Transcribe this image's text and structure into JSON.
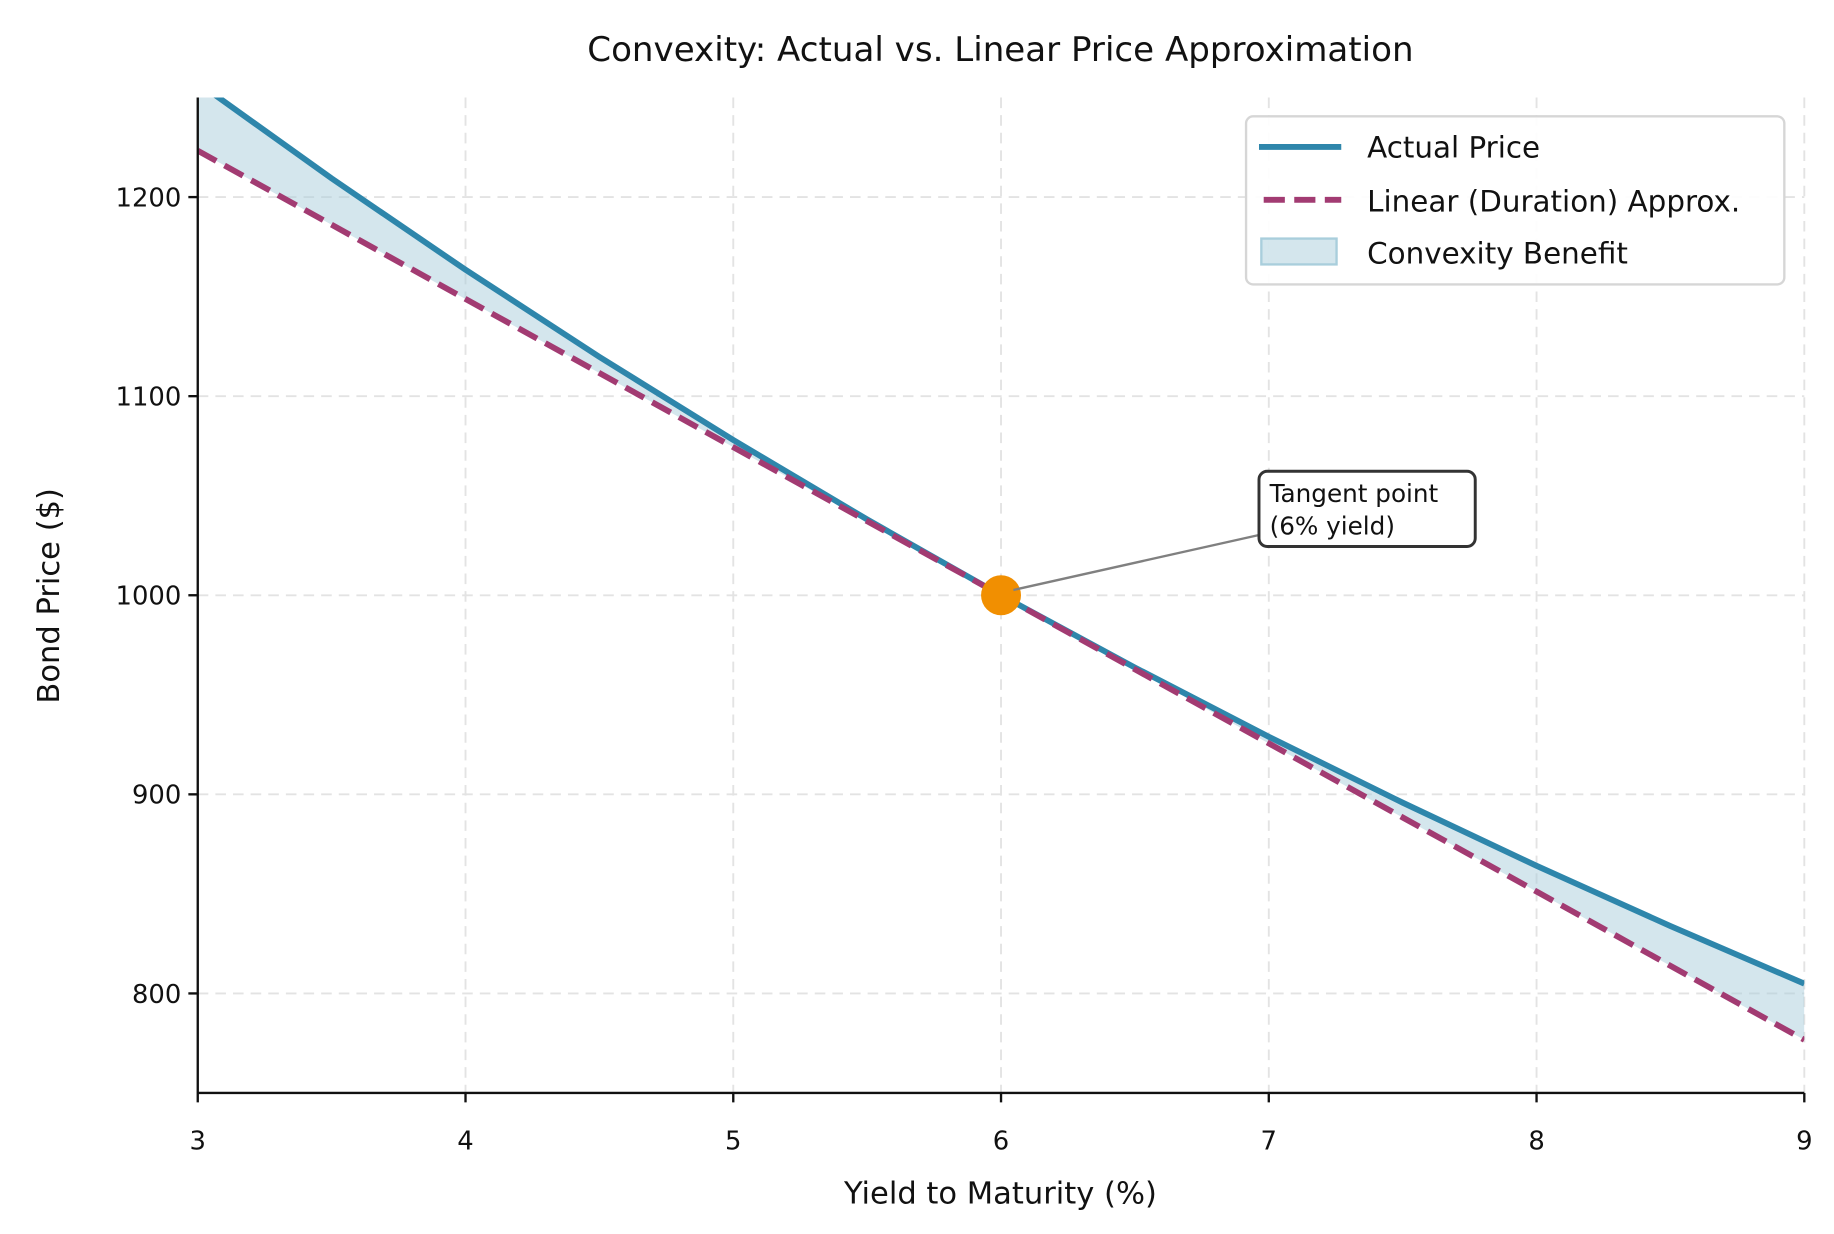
{
  "chart_data": {
    "type": "line",
    "title": "Convexity: Actual vs. Linear Price Approximation",
    "xlabel": "Yield to Maturity (%)",
    "ylabel": "Bond Price ($)",
    "xlim": [
      3,
      9
    ],
    "ylim": [
      750,
      1250
    ],
    "xticks": [
      "3",
      "4",
      "5",
      "6",
      "7",
      "8",
      "9"
    ],
    "yticks": [
      "800",
      "900",
      "1000",
      "1100",
      "1200"
    ],
    "grid": true,
    "legend_position": "top-right",
    "x": [
      3,
      3.5,
      4,
      4.5,
      5,
      5.5,
      6,
      6.5,
      7,
      7.5,
      8,
      8.5,
      9
    ],
    "series": [
      {
        "name": "Actual Price",
        "color": "#2E86AB",
        "style": "solid",
        "values": [
          1257.5,
          1209.4,
          1163.5,
          1119.7,
          1078.0,
          1038.1,
          1000,
          963.7,
          928.9,
          895.8,
          864.1,
          833.8,
          804.9
        ]
      },
      {
        "name": "Linear (Duration) Approx.",
        "color": "#A23B72",
        "style": "dashed",
        "values": [
          1223.3,
          1186.1,
          1148.8,
          1111.6,
          1074.4,
          1037.2,
          1000,
          962.8,
          925.6,
          888.4,
          851.2,
          813.9,
          776.7
        ]
      }
    ],
    "fill": {
      "name": "Convexity Benefit",
      "color": "#A9CEDC"
    },
    "marker": {
      "x": 6,
      "y": 1000,
      "color": "#F18F01"
    },
    "annotation": {
      "lines": [
        "Tangent point",
        "(6% yield)"
      ]
    }
  }
}
